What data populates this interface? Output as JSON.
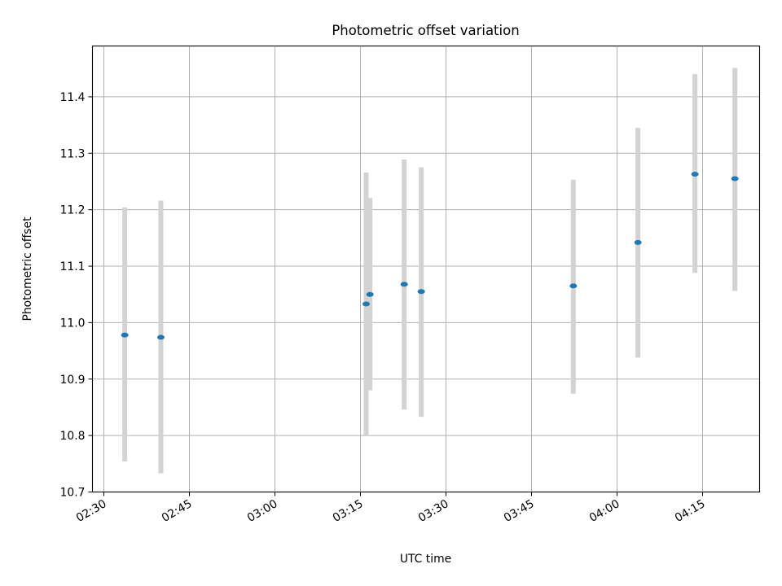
{
  "chart_data": {
    "type": "scatter",
    "title": "Photometric offset variation",
    "xlabel": "UTC time",
    "ylabel": "Photometric offset",
    "x_unit": "time of day (UTC), hh:mm",
    "xlim": [
      "02:28",
      "04:25"
    ],
    "ylim": [
      10.7,
      11.49
    ],
    "x_ticks": [
      "02:30",
      "02:45",
      "03:00",
      "03:15",
      "03:30",
      "03:45",
      "04:00",
      "04:15"
    ],
    "y_ticks": [
      10.7,
      10.8,
      10.9,
      11.0,
      11.1,
      11.2,
      11.3,
      11.4
    ],
    "grid": true,
    "legend": "none",
    "errorbar_color": "#d3d3d3",
    "point_color": "#1f77b4",
    "points": [
      {
        "time": "02:33:40",
        "y": 10.978,
        "ylow": 10.754,
        "yhigh": 11.204
      },
      {
        "time": "02:40:00",
        "y": 10.974,
        "ylow": 10.733,
        "yhigh": 11.216
      },
      {
        "time": "03:16:00",
        "y": 11.033,
        "ylow": 10.8,
        "yhigh": 11.266
      },
      {
        "time": "03:16:40",
        "y": 11.05,
        "ylow": 10.88,
        "yhigh": 11.221
      },
      {
        "time": "03:22:40",
        "y": 11.068,
        "ylow": 10.846,
        "yhigh": 11.289
      },
      {
        "time": "03:25:40",
        "y": 11.055,
        "ylow": 10.833,
        "yhigh": 11.275
      },
      {
        "time": "03:52:20",
        "y": 11.065,
        "ylow": 10.874,
        "yhigh": 11.253
      },
      {
        "time": "04:03:40",
        "y": 11.142,
        "ylow": 10.938,
        "yhigh": 11.345
      },
      {
        "time": "04:13:40",
        "y": 11.263,
        "ylow": 11.088,
        "yhigh": 11.44
      },
      {
        "time": "04:20:40",
        "y": 11.255,
        "ylow": 11.056,
        "yhigh": 11.451
      }
    ]
  }
}
